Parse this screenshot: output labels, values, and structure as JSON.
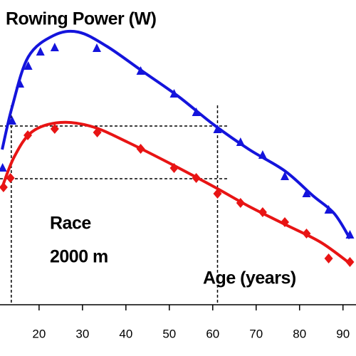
{
  "chart_data": {
    "type": "line",
    "title": "Rowing Power (W)",
    "annotations": [
      "Race",
      "2000 m",
      "Age (years)"
    ],
    "xlim": [
      11,
      93
    ],
    "xticks": [
      20,
      30,
      40,
      50,
      60,
      70,
      80,
      90
    ],
    "ylim": [
      0,
      100
    ],
    "reference_lines": {
      "x": [
        13.6,
        61.1
      ],
      "y": [
        62.75,
        44.25
      ]
    },
    "series": [
      {
        "color": "#1414dc",
        "marker": "triangle",
        "x": [
          11.6,
          13.8,
          15.6,
          17.5,
          20.3,
          23.6,
          33.3,
          43.4,
          51.1,
          56.2,
          61.1,
          66.4,
          71.5,
          76.6,
          81.6,
          86.7,
          91.6
        ],
        "values": [
          48,
          64.5,
          77.5,
          83.75,
          88.75,
          90.25,
          90,
          82,
          74,
          67.5,
          61.5,
          57,
          52.5,
          45,
          39,
          33.25,
          24.5
        ],
        "fit_x": [
          11.5,
          13.8,
          17.5,
          23.3,
          29,
          35.6,
          43.8,
          52,
          60.2,
          68.4,
          76.6,
          83.1,
          88,
          91.6
        ],
        "fit_values": [
          54.5,
          69.5,
          87,
          94.5,
          95.75,
          90.75,
          82,
          73.25,
          63.25,
          54.5,
          47,
          38.25,
          32,
          23.25
        ]
      },
      {
        "color": "#e81414",
        "marker": "diamond",
        "x": [
          11.8,
          13.4,
          17.4,
          23.6,
          33.4,
          43.4,
          51.1,
          56.2,
          61.1,
          66.4,
          71.5,
          76.6,
          81.6,
          86.7,
          91.6
        ],
        "values": [
          41.25,
          44.5,
          59.5,
          61.75,
          60.5,
          54.75,
          48,
          44.5,
          39,
          35.75,
          32.5,
          29,
          25,
          16.25,
          15
        ],
        "fit_x": [
          11.5,
          14.3,
          18.4,
          24.9,
          32.3,
          40.5,
          50.3,
          60.2,
          68.4,
          76.6,
          84.8,
          91.6
        ],
        "fit_values": [
          41.25,
          52,
          60.75,
          64,
          62.5,
          57,
          49.5,
          41.5,
          34.5,
          28.25,
          22,
          14.5
        ]
      }
    ]
  }
}
